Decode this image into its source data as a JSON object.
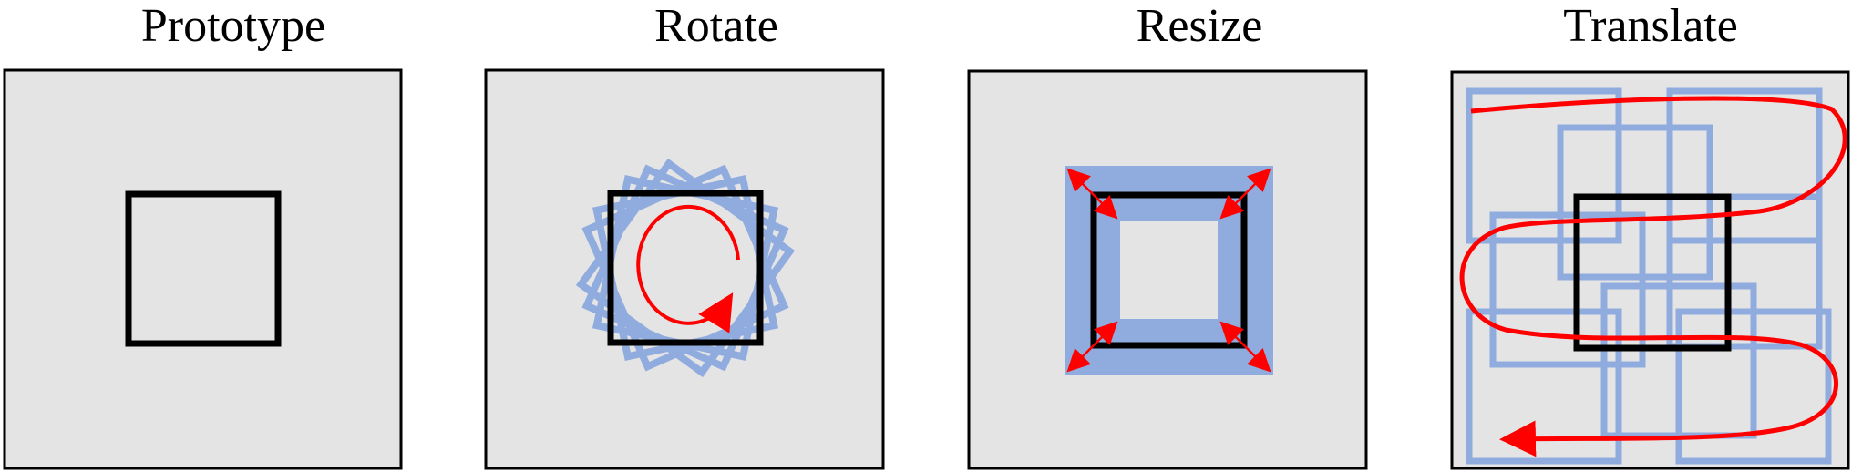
{
  "panels": [
    {
      "title": "Prototype",
      "transform": "none"
    },
    {
      "title": "Rotate",
      "transform": "rotation"
    },
    {
      "title": "Resize",
      "transform": "scaling"
    },
    {
      "title": "Translate",
      "transform": "translation"
    }
  ],
  "colors": {
    "canvas_fill": "#e4e4e4",
    "canvas_border": "#000000",
    "prototype_square": "#000000",
    "augmented_square": "#90acdf",
    "arrow": "#ff0000"
  }
}
